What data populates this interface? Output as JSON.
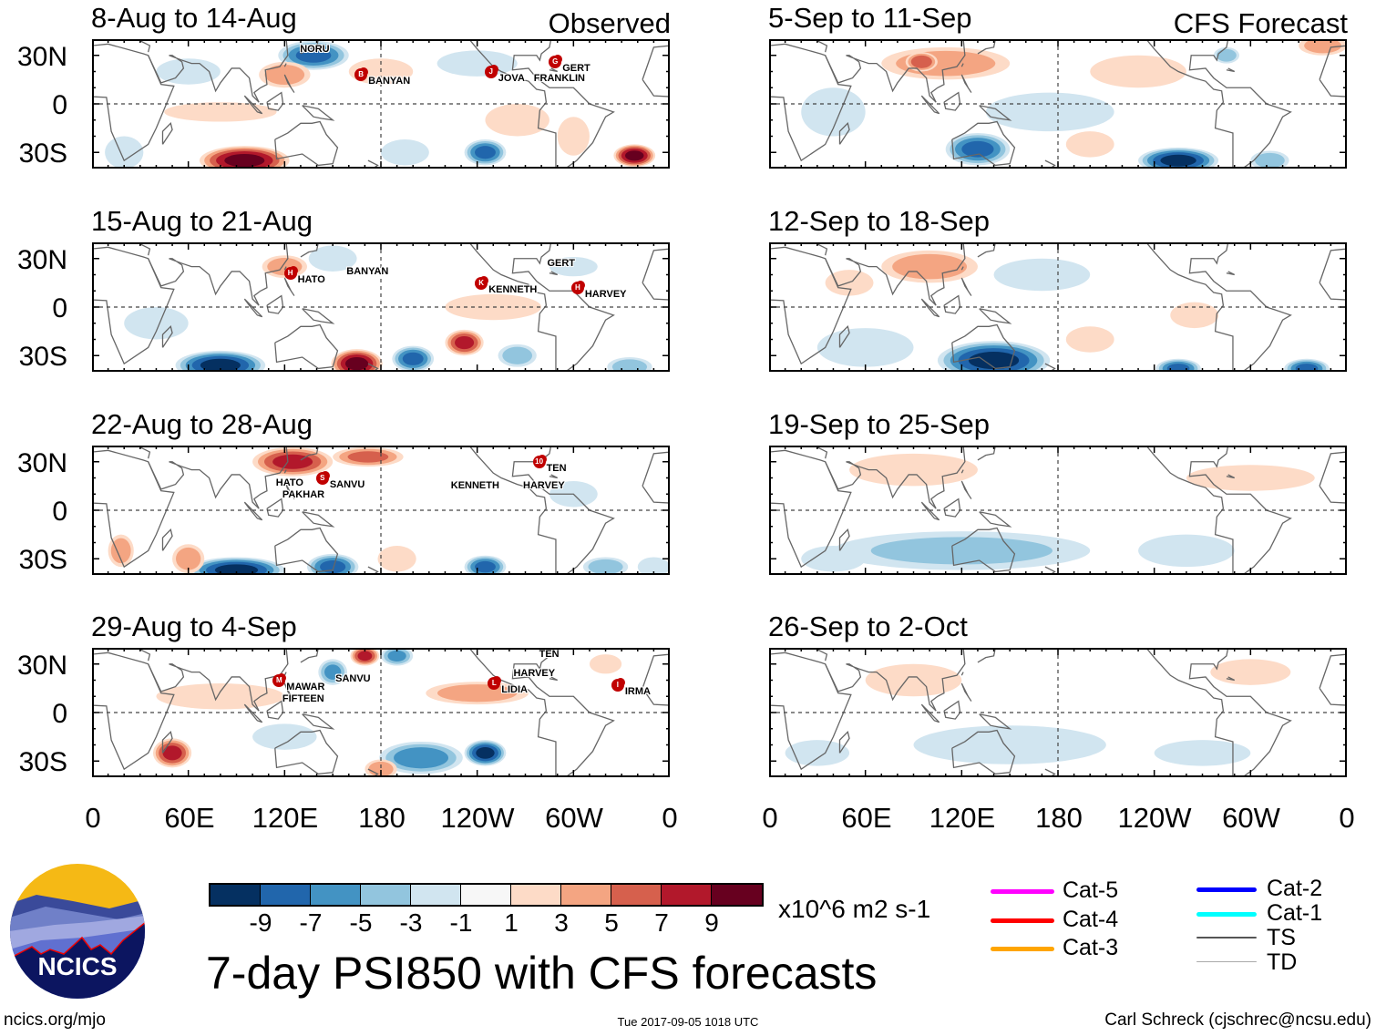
{
  "figure": {
    "title": "7-day PSI850 with CFS forecasts",
    "observed_label": "Observed",
    "forecast_label": "CFS Forecast",
    "url": "ncics.org/mjo",
    "timestamp": "Tue 2017-09-05 1018 UTC",
    "credit": "Carl Schreck (cjschrec@ncsu.edu)",
    "logo_text": "NCICS"
  },
  "colorbar": {
    "units": "x10^6 m2 s-1",
    "ticks": [
      "-9",
      "-7",
      "-5",
      "-3",
      "-1",
      "1",
      "3",
      "5",
      "7",
      "9"
    ],
    "colors": [
      "#053061",
      "#2166ac",
      "#4393c3",
      "#92c5de",
      "#d1e5f0",
      "#f7f7f7",
      "#fddbc7",
      "#f4a582",
      "#d6604d",
      "#b2182b",
      "#67001f"
    ]
  },
  "legend": {
    "items": [
      {
        "label": "Cat-5",
        "color": "#ff00ff"
      },
      {
        "label": "Cat-4",
        "color": "#ff0000"
      },
      {
        "label": "Cat-3",
        "color": "#ffa500"
      },
      {
        "label": "Cat-2",
        "color": "#0000ff"
      },
      {
        "label": "Cat-1",
        "color": "#00ffff"
      },
      {
        "label": "TS",
        "color": "#555555"
      },
      {
        "label": "TD",
        "color": "#aaaaaa"
      }
    ]
  },
  "axes": {
    "y_ticks": [
      "30N",
      "0",
      "30S"
    ],
    "x_ticks": [
      "0",
      "60E",
      "120E",
      "180",
      "120W",
      "60W",
      "0"
    ]
  },
  "chart_data": [
    {
      "type": "heatmap",
      "title": "8-Aug to 14-Aug",
      "source": "Observed",
      "anomalies": [
        [
          138,
          30,
          -8,
          22,
          9
        ],
        [
          120,
          18,
          5,
          16,
          8
        ],
        [
          95,
          -35,
          10,
          28,
          9
        ],
        [
          245,
          -30,
          -8,
          13,
          8
        ],
        [
          338,
          -32,
          10,
          13,
          7
        ],
        [
          20,
          -30,
          -3,
          12,
          10
        ],
        [
          80,
          -5,
          3,
          35,
          6
        ],
        [
          265,
          -10,
          3,
          20,
          10
        ],
        [
          195,
          -30,
          -3,
          15,
          8
        ],
        [
          300,
          -20,
          3,
          10,
          12
        ],
        [
          60,
          20,
          -3,
          20,
          8
        ],
        [
          240,
          25,
          -3,
          25,
          8
        ],
        [
          180,
          20,
          2,
          20,
          8
        ]
      ],
      "storms": [
        {
          "name": "NORU",
          "icon": "",
          "lon": 133,
          "lat": 34
        },
        {
          "name": "BANYAN",
          "icon": "B",
          "lon": 167,
          "lat": 19
        },
        {
          "name": "JOVA",
          "icon": "J",
          "lon": 248,
          "lat": 21
        },
        {
          "name": "FRANKLIN",
          "icon": "",
          "lon": 273,
          "lat": 16
        },
        {
          "name": "GERT",
          "icon": "G",
          "lon": 288,
          "lat": 27
        }
      ]
    },
    {
      "type": "heatmap",
      "title": "15-Aug to 21-Aug",
      "source": "Observed",
      "anomalies": [
        [
          80,
          -36,
          -10,
          28,
          9
        ],
        [
          165,
          -35,
          10,
          16,
          9
        ],
        [
          200,
          -32,
          -8,
          13,
          8
        ],
        [
          232,
          -22,
          8,
          12,
          8
        ],
        [
          265,
          -30,
          -5,
          12,
          7
        ],
        [
          120,
          25,
          5,
          14,
          7
        ],
        [
          335,
          -37,
          -5,
          14,
          6
        ],
        [
          250,
          0,
          3,
          30,
          8
        ],
        [
          40,
          -10,
          -3,
          20,
          10
        ],
        [
          150,
          30,
          -3,
          15,
          8
        ],
        [
          300,
          25,
          -3,
          15,
          6
        ]
      ],
      "storms": [
        {
          "name": "HATO",
          "icon": "H",
          "lon": 123,
          "lat": 22
        },
        {
          "name": "BANYAN",
          "icon": "",
          "lon": 162,
          "lat": 22
        },
        {
          "name": "GERT",
          "icon": "",
          "lon": 287,
          "lat": 27
        },
        {
          "name": "KENNETH",
          "icon": "K",
          "lon": 242,
          "lat": 16
        },
        {
          "name": "HARVEY",
          "icon": "H",
          "lon": 302,
          "lat": 13
        }
      ]
    },
    {
      "type": "heatmap",
      "title": "22-Aug to 28-Aug",
      "source": "Observed",
      "anomalies": [
        [
          125,
          30,
          8,
          25,
          9
        ],
        [
          172,
          33,
          6,
          22,
          6
        ],
        [
          90,
          -37,
          -10,
          30,
          8
        ],
        [
          150,
          -35,
          -8,
          16,
          8
        ],
        [
          245,
          -35,
          -8,
          13,
          7
        ],
        [
          190,
          -30,
          3,
          12,
          8
        ],
        [
          320,
          -35,
          -5,
          14,
          6
        ],
        [
          60,
          -30,
          5,
          10,
          9
        ],
        [
          18,
          -25,
          5,
          8,
          10
        ],
        [
          350,
          -35,
          -3,
          10,
          6
        ],
        [
          300,
          10,
          -3,
          15,
          8
        ]
      ],
      "storms": [
        {
          "name": "HATO",
          "icon": "",
          "lon": 118,
          "lat": 17
        },
        {
          "name": "PAKHAR",
          "icon": "",
          "lon": 122,
          "lat": 13
        },
        {
          "name": "SANVU",
          "icon": "S",
          "lon": 143,
          "lat": 21
        },
        {
          "name": "KENNETH",
          "icon": "",
          "lon": 227,
          "lat": 15
        },
        {
          "name": "TEN",
          "icon": "10",
          "lon": 278,
          "lat": 31
        },
        {
          "name": "HARVEY",
          "icon": "",
          "lon": 272,
          "lat": 15
        }
      ]
    },
    {
      "type": "heatmap",
      "title": "29-Aug to 4-Sep",
      "source": "Observed",
      "anomalies": [
        [
          170,
          35,
          8,
          9,
          6
        ],
        [
          150,
          25,
          -6,
          9,
          8
        ],
        [
          50,
          -25,
          8,
          12,
          9
        ],
        [
          205,
          -28,
          -7,
          26,
          10
        ],
        [
          245,
          -25,
          -10,
          13,
          8
        ],
        [
          180,
          -35,
          5,
          10,
          6
        ],
        [
          240,
          12,
          5,
          32,
          7
        ],
        [
          190,
          35,
          -6,
          10,
          6
        ],
        [
          80,
          10,
          3,
          40,
          8
        ],
        [
          320,
          30,
          3,
          10,
          6
        ],
        [
          120,
          -15,
          -2,
          20,
          8
        ]
      ],
      "storms": [
        {
          "name": "MAWAR",
          "icon": "M",
          "lon": 116,
          "lat": 21
        },
        {
          "name": "FIFTEEN",
          "icon": "",
          "lon": 122,
          "lat": 16
        },
        {
          "name": "SANVU",
          "icon": "",
          "lon": 146,
          "lat": 21
        },
        {
          "name": "TEN",
          "icon": "",
          "lon": 282,
          "lat": 31
        },
        {
          "name": "HARVEY",
          "icon": "",
          "lon": 266,
          "lat": 27
        },
        {
          "name": "LIDIA",
          "icon": "L",
          "lon": 250,
          "lat": 19
        },
        {
          "name": "IRMA",
          "icon": "I",
          "lon": 327,
          "lat": 18
        }
      ]
    },
    {
      "type": "heatmap",
      "title": "5-Sep to 11-Sep",
      "source": "CFS Forecast",
      "anomalies": [
        [
          110,
          25,
          5,
          40,
          10
        ],
        [
          95,
          26,
          7,
          10,
          6
        ],
        [
          130,
          -28,
          -8,
          20,
          10
        ],
        [
          255,
          -35,
          -10,
          25,
          8
        ],
        [
          312,
          -35,
          -5,
          12,
          6
        ],
        [
          345,
          36,
          5,
          15,
          6
        ],
        [
          230,
          20,
          3,
          30,
          10
        ],
        [
          175,
          -5,
          -3,
          40,
          12
        ],
        [
          200,
          -25,
          3,
          15,
          8
        ],
        [
          285,
          30,
          -5,
          8,
          5
        ],
        [
          40,
          -5,
          -2,
          20,
          15
        ]
      ],
      "storms": []
    },
    {
      "type": "heatmap",
      "title": "12-Sep to 18-Sep",
      "source": "CFS Forecast",
      "anomalies": [
        [
          140,
          -33,
          -10,
          35,
          12
        ],
        [
          255,
          -38,
          -8,
          14,
          6
        ],
        [
          335,
          -38,
          -8,
          14,
          6
        ],
        [
          100,
          25,
          5,
          30,
          10
        ],
        [
          265,
          -5,
          3,
          15,
          8
        ],
        [
          60,
          -25,
          -3,
          30,
          12
        ],
        [
          200,
          -20,
          3,
          15,
          8
        ],
        [
          170,
          20,
          -2,
          30,
          10
        ],
        [
          50,
          15,
          3,
          15,
          8
        ]
      ],
      "storms": []
    },
    {
      "type": "heatmap",
      "title": "19-Sep to 25-Sep",
      "source": "CFS Forecast",
      "anomalies": [
        [
          90,
          25,
          3,
          40,
          10
        ],
        [
          120,
          -25,
          -4,
          80,
          12
        ],
        [
          300,
          20,
          3,
          40,
          8
        ],
        [
          260,
          -25,
          -2,
          30,
          10
        ],
        [
          40,
          -30,
          -3,
          20,
          8
        ]
      ],
      "storms": []
    },
    {
      "type": "heatmap",
      "title": "26-Sep to 2-Oct",
      "source": "CFS Forecast",
      "anomalies": [
        [
          90,
          20,
          3,
          30,
          10
        ],
        [
          150,
          -20,
          -3,
          60,
          12
        ],
        [
          270,
          -25,
          -2,
          30,
          8
        ],
        [
          300,
          25,
          2,
          25,
          8
        ],
        [
          30,
          -25,
          -2,
          20,
          8
        ]
      ],
      "storms": []
    }
  ]
}
